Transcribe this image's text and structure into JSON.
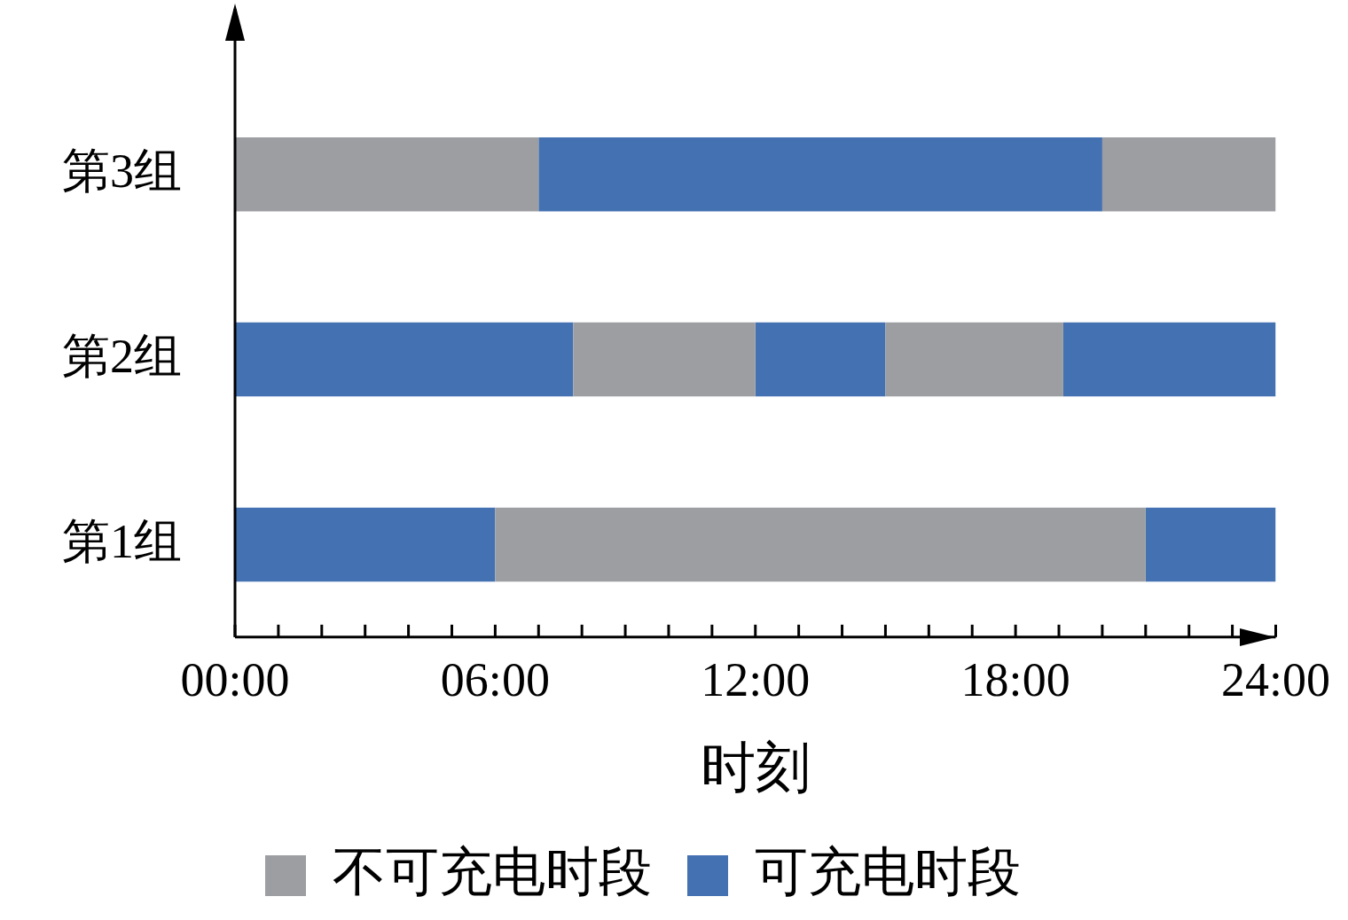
{
  "chart_data": {
    "type": "bar",
    "orientation": "horizontal",
    "categories": [
      "第3组",
      "第2组",
      "第1组"
    ],
    "series": [
      {
        "name": "不可充电时段",
        "color": "#9d9ea2",
        "base": [
          0,
          7.8,
          6
        ],
        "values": [
          7,
          4.2,
          15
        ]
      },
      {
        "name": "可充电时段",
        "color": "#4471b2",
        "base": [
          7,
          0,
          0
        ],
        "values": [
          13,
          7.8,
          6
        ]
      },
      {
        "color": "#9d9ea2",
        "base": [
          20,
          15,
          null
        ],
        "values": [
          4,
          4.1,
          null
        ]
      },
      {
        "color": "#4471b2",
        "base": [
          null,
          12,
          21
        ],
        "values": [
          null,
          3,
          3
        ]
      },
      {
        "color": "#4471b2",
        "base": [
          null,
          19.1,
          null
        ],
        "values": [
          null,
          4.9,
          null
        ]
      }
    ],
    "xlim": [
      0,
      24
    ],
    "xticks": [
      {
        "value": 0,
        "label": "00:00"
      },
      {
        "value": 1,
        "label": null
      },
      {
        "value": 2,
        "label": null
      },
      {
        "value": 3,
        "label": null
      },
      {
        "value": 4,
        "label": null
      },
      {
        "value": 5,
        "label": null
      },
      {
        "value": 6,
        "label": "06:00"
      },
      {
        "value": 7,
        "label": null
      },
      {
        "value": 8,
        "label": null
      },
      {
        "value": 9,
        "label": null
      },
      {
        "value": 10,
        "label": null
      },
      {
        "value": 11,
        "label": null
      },
      {
        "value": 12,
        "label": "12:00"
      },
      {
        "value": 13,
        "label": null
      },
      {
        "value": 14,
        "label": null
      },
      {
        "value": 15,
        "label": null
      },
      {
        "value": 16,
        "label": null
      },
      {
        "value": 17,
        "label": null
      },
      {
        "value": 18,
        "label": "18:00"
      },
      {
        "value": 19,
        "label": null
      },
      {
        "value": 20,
        "label": null
      },
      {
        "value": 21,
        "label": null
      },
      {
        "value": 22,
        "label": null
      },
      {
        "value": 23,
        "label": null
      },
      {
        "value": 24,
        "label": "24:00"
      }
    ],
    "xlabel": "时刻",
    "grid": false,
    "legend": "bottom"
  }
}
